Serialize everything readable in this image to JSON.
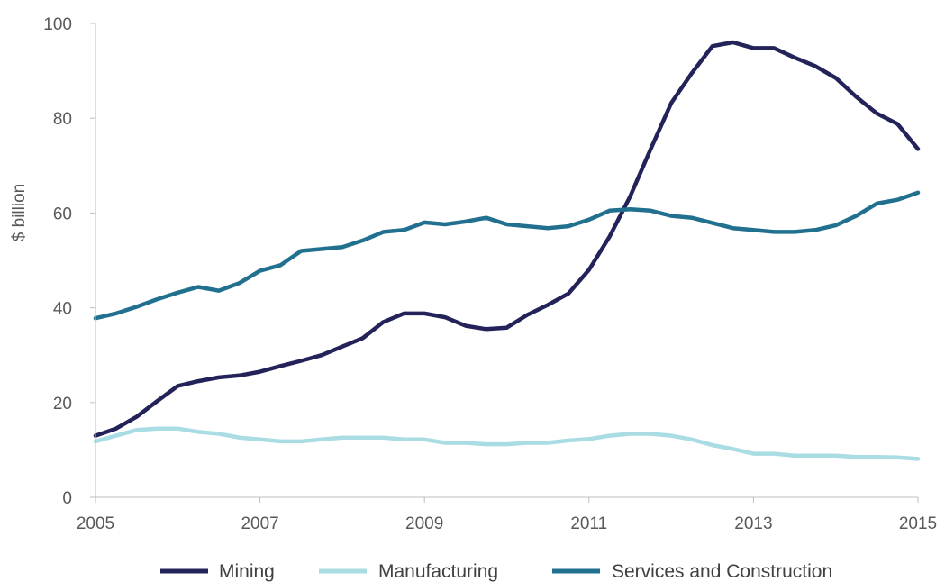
{
  "chart_data": {
    "type": "line",
    "title": "",
    "xlabel": "",
    "ylabel": "$ billion",
    "xlim": [
      2005,
      2015
    ],
    "ylim": [
      0,
      100
    ],
    "x_ticks": [
      "2005",
      "2007",
      "2009",
      "2011",
      "2013",
      "2015"
    ],
    "y_ticks": [
      "0",
      "20",
      "40",
      "60",
      "80",
      "100"
    ],
    "grid": false,
    "legend_position": "bottom",
    "x": [
      2005.0,
      2005.25,
      2005.5,
      2005.75,
      2006.0,
      2006.25,
      2006.5,
      2006.75,
      2007.0,
      2007.25,
      2007.5,
      2007.75,
      2008.0,
      2008.25,
      2008.5,
      2008.75,
      2009.0,
      2009.25,
      2009.5,
      2009.75,
      2010.0,
      2010.25,
      2010.5,
      2010.75,
      2011.0,
      2011.25,
      2011.5,
      2011.75,
      2012.0,
      2012.25,
      2012.5,
      2012.75,
      2013.0,
      2013.25,
      2013.5,
      2013.75,
      2014.0,
      2014.25,
      2014.5,
      2014.75,
      2015.0
    ],
    "series": [
      {
        "name": "Mining",
        "color": "#23235a",
        "values": [
          13.0,
          14.5,
          17.0,
          20.3,
          23.5,
          24.5,
          25.3,
          25.7,
          26.5,
          27.7,
          28.8,
          30.0,
          31.8,
          33.6,
          37.0,
          38.8,
          38.8,
          38.0,
          36.2,
          35.5,
          35.8,
          38.5,
          40.6,
          43.0,
          48.0,
          55.0,
          63.5,
          73.5,
          83.2,
          89.5,
          95.2,
          96.0,
          94.8,
          94.8,
          92.8,
          91.0,
          88.5,
          84.5,
          81.0,
          78.8,
          73.5
        ]
      },
      {
        "name": "Manufacturing",
        "color": "#a9dce3",
        "values": [
          11.8,
          13.0,
          14.2,
          14.5,
          14.5,
          13.8,
          13.4,
          12.6,
          12.2,
          11.8,
          11.8,
          12.2,
          12.6,
          12.6,
          12.6,
          12.2,
          12.2,
          11.5,
          11.5,
          11.2,
          11.2,
          11.5,
          11.5,
          12.0,
          12.3,
          13.0,
          13.4,
          13.4,
          13.0,
          12.2,
          11.0,
          10.2,
          9.2,
          9.2,
          8.8,
          8.8,
          8.8,
          8.5,
          8.5,
          8.4,
          8.1
        ]
      },
      {
        "name": "Services and Construction",
        "color": "#21708f",
        "values": [
          37.8,
          38.8,
          40.2,
          41.8,
          43.2,
          44.4,
          43.6,
          45.2,
          47.8,
          49.0,
          52.0,
          52.4,
          52.8,
          54.2,
          56.0,
          56.4,
          58.0,
          57.6,
          58.2,
          59.0,
          57.6,
          57.2,
          56.8,
          57.2,
          58.6,
          60.5,
          60.8,
          60.5,
          59.4,
          59.0,
          57.9,
          56.8,
          56.4,
          56.0,
          56.0,
          56.4,
          57.4,
          59.4,
          62.0,
          62.8,
          64.3
        ]
      }
    ]
  }
}
